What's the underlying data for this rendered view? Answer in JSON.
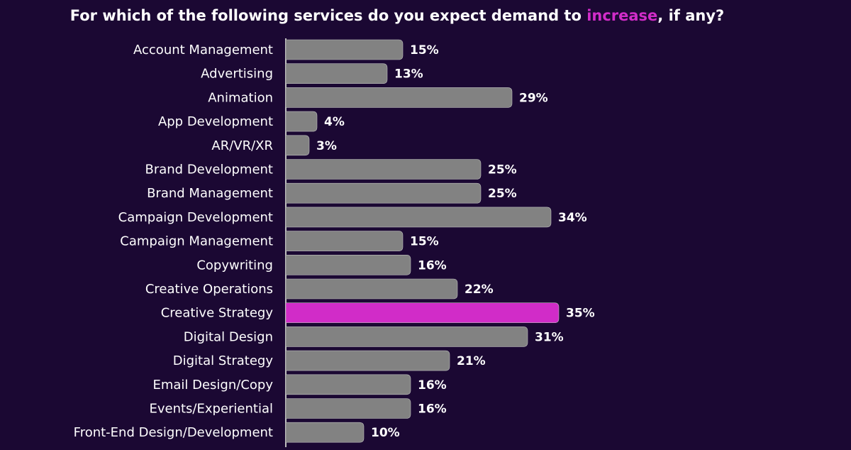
{
  "chart_data": {
    "type": "bar",
    "orientation": "horizontal",
    "title_parts": [
      "For which of the following services do you expect demand to ",
      "increase",
      ", if any?"
    ],
    "title_colors": [
      "#ffffff",
      "#d12cc8",
      "#ffffff"
    ],
    "categories": [
      "Account Management",
      "Advertising",
      "Animation",
      "App Development",
      "AR/VR/XR",
      "Brand Development",
      "Brand Management",
      "Campaign Development",
      "Campaign Management",
      "Copywriting",
      "Creative Operations",
      "Creative Strategy",
      "Digital Design",
      "Digital Strategy",
      "Email Design/Copy",
      "Events/Experiential",
      "Front-End Design/Development"
    ],
    "values": [
      15,
      13,
      29,
      4,
      3,
      25,
      25,
      34,
      15,
      16,
      22,
      35,
      31,
      21,
      16,
      16,
      10
    ],
    "value_labels": [
      "15%",
      "13%",
      "29%",
      "4%",
      "3%",
      "25%",
      "25%",
      "34%",
      "15%",
      "16%",
      "22%",
      "35%",
      "31%",
      "21%",
      "16%",
      "16%",
      "10%"
    ],
    "colors": [
      "#828282",
      "#828282",
      "#828282",
      "#828282",
      "#828282",
      "#828282",
      "#828282",
      "#828282",
      "#828282",
      "#828282",
      "#828282",
      "#d12cc8",
      "#828282",
      "#828282",
      "#828282",
      "#828282",
      "#828282"
    ],
    "xlim": [
      0,
      35
    ]
  }
}
